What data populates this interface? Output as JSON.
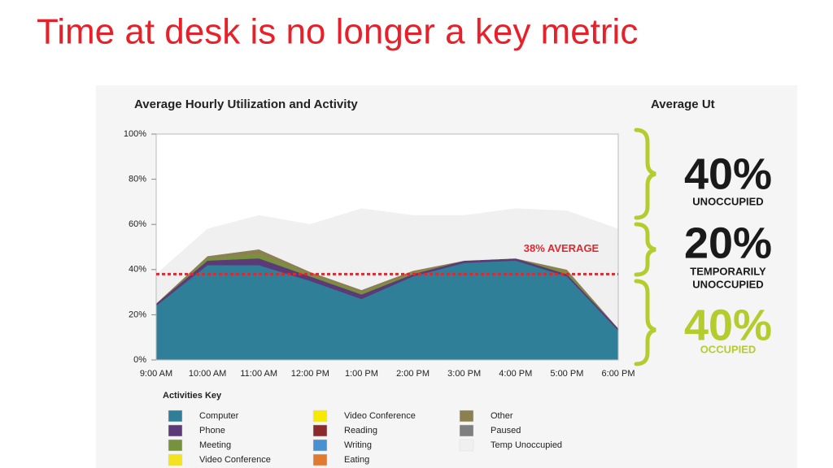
{
  "slide_title": "Time at desk is no longer a key metric",
  "chart_data": {
    "type": "stacked-area",
    "title": "Average Hourly Utilization and Activity",
    "legend_title": "Activities Key",
    "categories": [
      "9:00 AM",
      "10:00 AM",
      "11:00 AM",
      "12:00 PM",
      "1:00 PM",
      "2:00 PM",
      "3:00 PM",
      "4:00 PM",
      "5:00 PM",
      "6:00 PM"
    ],
    "series": [
      {
        "name": "Computer",
        "color": "#2f7f99",
        "values": [
          24,
          42,
          42,
          35,
          27,
          37,
          43,
          44,
          37,
          13
        ]
      },
      {
        "name": "Phone",
        "color": "#5b3a78",
        "values": [
          1,
          2,
          3,
          2,
          2,
          1,
          1,
          1,
          1,
          1
        ]
      },
      {
        "name": "Meeting",
        "color": "#76923c",
        "values": [
          0,
          1,
          2,
          1,
          1,
          0.5,
          0,
          0,
          1,
          0
        ]
      },
      {
        "name": "Video Conference",
        "color": "#f2e21f",
        "values": [
          0,
          0,
          0,
          0,
          0,
          0,
          0,
          0,
          0,
          0
        ]
      },
      {
        "name": "Video Conference",
        "color": "#f7ea00",
        "values": [
          0,
          0,
          0,
          0,
          0,
          0,
          0,
          0,
          0,
          0
        ]
      },
      {
        "name": "Reading",
        "color": "#8b2a2a",
        "values": [
          0,
          0,
          0,
          0,
          0,
          0,
          0,
          0,
          0,
          0
        ]
      },
      {
        "name": "Writing",
        "color": "#4a8fd0",
        "values": [
          0,
          0,
          0,
          0,
          0,
          0,
          0,
          0,
          0,
          0
        ]
      },
      {
        "name": "Eating",
        "color": "#e07a30",
        "values": [
          0,
          0,
          0,
          0,
          0,
          0,
          0,
          0,
          0,
          0
        ]
      },
      {
        "name": "Other",
        "color": "#8b8050",
        "values": [
          0,
          1,
          2,
          1,
          1,
          1,
          0,
          0,
          1,
          0
        ]
      },
      {
        "name": "Paused",
        "color": "#7f7f7f",
        "values": [
          0,
          0,
          0,
          0,
          0,
          0,
          0,
          0,
          0,
          0
        ]
      },
      {
        "name": "Temp Unoccupied",
        "color": "#f0f0f0",
        "values": [
          13,
          12,
          15,
          21,
          36,
          24.5,
          20,
          22,
          26,
          44
        ]
      }
    ],
    "average": {
      "value": 38,
      "label": "38% AVERAGE",
      "color": "#e0282e"
    },
    "ylim": [
      0,
      100
    ],
    "yticks": [
      {
        "value": 0,
        "label": "0%"
      },
      {
        "value": 20,
        "label": "20%"
      },
      {
        "value": 40,
        "label": "40%"
      },
      {
        "value": 60,
        "label": "60%"
      },
      {
        "value": 80,
        "label": "80%"
      },
      {
        "value": 100,
        "label": "100%"
      }
    ]
  },
  "side_panel": {
    "title": "Average Ut",
    "blocks": [
      {
        "value": "40%",
        "lines": [
          "UNOCCUPIED"
        ]
      },
      {
        "value": "20%",
        "lines": [
          "TEMPORARILY",
          "UNOCCUPIED"
        ]
      },
      {
        "value": "40%",
        "lines": [
          "OCCUPIED"
        ]
      }
    ]
  }
}
